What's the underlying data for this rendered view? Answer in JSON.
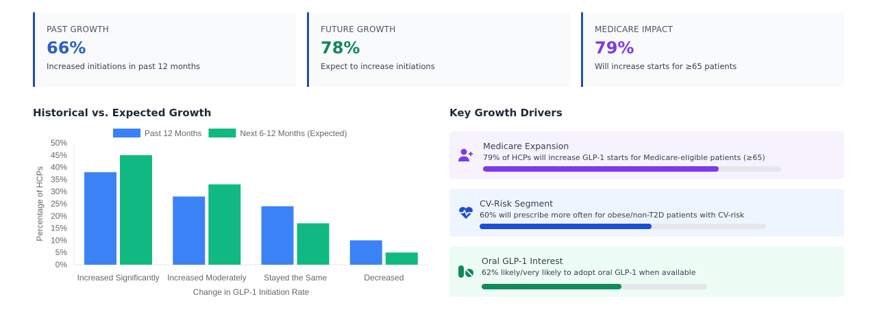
{
  "metrics": [
    {
      "label": "PAST GROWTH",
      "value": "66%",
      "desc": "Increased initiations in past 12 months",
      "color": "#2b5fc7"
    },
    {
      "label": "FUTURE GROWTH",
      "value": "78%",
      "desc": "Expect to increase initiations",
      "color": "#13875a"
    },
    {
      "label": "MEDICARE IMPACT",
      "value": "79%",
      "desc": "Will increase starts for ≥65 patients",
      "color": "#7c3aed"
    }
  ],
  "chart_section": {
    "title": "Historical vs. Expected Growth"
  },
  "drivers_section": {
    "title": "Key Growth Drivers"
  },
  "chart_data": {
    "type": "bar",
    "categories": [
      "Increased Significantly",
      "Increased Moderately",
      "Stayed the Same",
      "Decreased"
    ],
    "series": [
      {
        "name": "Past 12 Months",
        "values": [
          38,
          28,
          24,
          10
        ],
        "color": "#3b82f6"
      },
      {
        "name": "Next 6-12 Months (Expected)",
        "values": [
          45,
          33,
          17,
          5
        ],
        "color": "#10b981"
      }
    ],
    "xlabel": "Change in GLP-1 Initiation Rate",
    "ylabel": "Percentage of HCPs",
    "ylim": [
      0,
      50
    ],
    "yticks": [
      "0%",
      "5%",
      "10%",
      "15%",
      "20%",
      "25%",
      "30%",
      "35%",
      "40%",
      "45%",
      "50%"
    ],
    "legend": "top",
    "grid": false
  },
  "drivers": [
    {
      "title": "Medicare Expansion",
      "desc": "79% of HCPs will increase GLP-1 starts for Medicare-eligible patients (≥65)",
      "percent": 79,
      "icon": "user-plus-icon",
      "color": "#7c3aed",
      "bg": "#f6f3fe"
    },
    {
      "title": "CV-Risk Segment",
      "desc": "60% will prescribe more often for obese/non-T2D patients with CV-risk",
      "percent": 60,
      "icon": "heart-pulse-icon",
      "color": "#1d4ed8",
      "bg": "#eff5fe"
    },
    {
      "title": "Oral GLP-1 Interest",
      "desc": "62% likely/very likely to adopt oral GLP-1 when available",
      "percent": 62,
      "icon": "pills-icon",
      "color": "#0f8a5a",
      "bg": "#edfcf4"
    }
  ]
}
